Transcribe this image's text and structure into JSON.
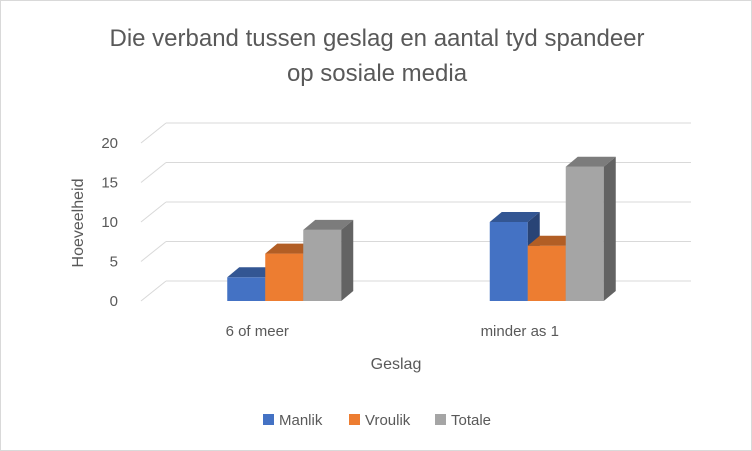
{
  "chart_data": {
    "type": "bar",
    "title_lines": [
      "Die verband tussen geslag en aantal tyd spandeer",
      "op sosiale media"
    ],
    "xlabel": "Geslag",
    "ylabel": "Hoeveelheid",
    "categories": [
      "6 of meer",
      "minder as 1"
    ],
    "series": [
      {
        "name": "Manlik",
        "values": [
          3,
          10
        ],
        "color": "#4472c4"
      },
      {
        "name": "Vroulik",
        "values": [
          6,
          7
        ],
        "color": "#ed7d31"
      },
      {
        "name": "Totale",
        "values": [
          9,
          17
        ],
        "color": "#a5a5a5"
      }
    ],
    "ylim": [
      0,
      20
    ],
    "yticks": [
      0,
      5,
      10,
      15,
      20
    ],
    "grid": true,
    "legend": "bottom",
    "style": "3d-clustered-column"
  }
}
